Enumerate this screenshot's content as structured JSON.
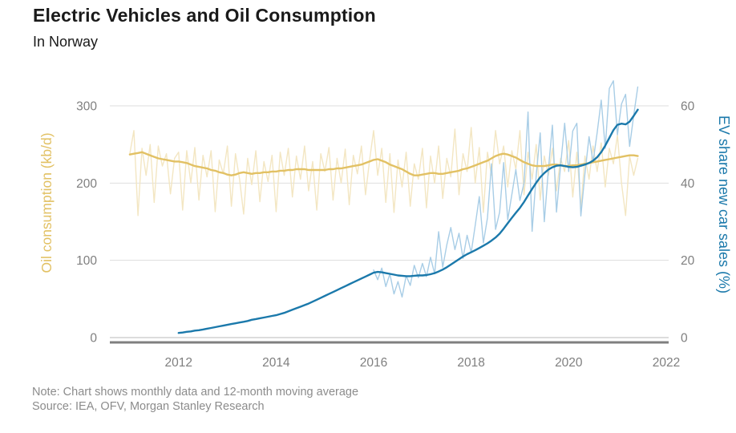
{
  "header": {
    "title": "Electric Vehicles and Oil Consumption",
    "subtitle": "In Norway"
  },
  "footer": {
    "note": "Note: Chart shows monthly data and 12-month moving average",
    "source": "Source: IEA, OFV, Morgan Stanley Research"
  },
  "chart_data": {
    "type": "line",
    "title": "Electric Vehicles and Oil Consumption",
    "subtitle": "In Norway",
    "grid": "horizontal-only",
    "colors": {
      "gridline": "#dedede",
      "zero_line": "#c8c8c8",
      "axis_base_line": "#7f7f7f",
      "tick_label": "#7f7f7f",
      "oil_monthly": "#f3e6c2",
      "oil_avg": "#e2c164",
      "ev_monthly": "#a8cde6",
      "ev_avg": "#1b79ab"
    },
    "x_axis": {
      "ticks": [
        2012,
        2014,
        2016,
        2018,
        2020,
        2022
      ],
      "range": [
        2010.59,
        2022.05
      ]
    },
    "left_axis": {
      "label": "Oil consumption (kb/d)",
      "label_color": "#e2c164",
      "ticks": [
        0,
        100,
        200,
        300
      ],
      "range": [
        0,
        300
      ]
    },
    "right_axis": {
      "label": "EV share new car sales (%)",
      "label_color": "#1b79ab",
      "ticks": [
        0,
        20,
        40,
        60
      ],
      "range": [
        0,
        60
      ]
    },
    "series": [
      {
        "name": "Oil consumption (monthly)",
        "data_name": "oil-monthly-line",
        "axis": "left",
        "color_key": "oil_monthly",
        "width": 1.4,
        "start": 2011.0,
        "step_months": 1,
        "values": [
          238,
          268,
          158,
          245,
          210,
          250,
          175,
          248,
          222,
          238,
          186,
          232,
          240,
          165,
          242,
          200,
          246,
          178,
          236,
          208,
          242,
          163,
          230,
          212,
          248,
          170,
          238,
          205,
          160,
          232,
          198,
          242,
          176,
          228,
          202,
          236,
          163,
          240,
          210,
          245,
          182,
          235,
          205,
          248,
          190,
          228,
          165,
          238,
          215,
          246,
          178,
          232,
          200,
          244,
          172,
          236,
          212,
          248,
          185,
          230,
          268,
          210,
          245,
          175,
          238,
          162,
          230,
          195,
          240,
          170,
          225,
          205,
          245,
          168,
          235,
          200,
          248,
          180,
          232,
          208,
          270,
          185,
          238,
          215,
          272,
          200,
          246,
          162,
          240,
          210,
          268,
          225,
          248,
          195,
          242,
          218,
          268,
          185,
          240,
          205,
          250,
          178,
          235,
          210,
          245,
          190,
          232,
          215,
          255,
          182,
          240,
          168,
          235,
          205,
          248,
          215,
          252,
          195,
          245,
          225,
          262,
          200,
          158,
          235,
          210,
          232
        ]
      },
      {
        "name": "EV share new car sales (monthly)",
        "data_name": "ev-monthly-line",
        "axis": "right",
        "color_key": "ev_monthly",
        "width": 1.4,
        "start": 2016.0,
        "step_months": 1,
        "values": [
          17.5,
          15.0,
          18.0,
          13.2,
          16.5,
          11.3,
          14.5,
          10.5,
          16.0,
          13.5,
          18.7,
          15.5,
          19.2,
          15.8,
          20.8,
          16.5,
          27.4,
          18.2,
          24.0,
          28.5,
          22.8,
          27.0,
          20.5,
          26.5,
          22.0,
          29.0,
          36.5,
          24.5,
          31.0,
          45.0,
          28.0,
          32.5,
          45.3,
          30.5,
          37.0,
          43.5,
          35.5,
          40.0,
          58.4,
          27.5,
          42.0,
          53.0,
          30.0,
          43.5,
          55.0,
          32.5,
          44.5,
          55.5,
          43.0,
          53.5,
          55.5,
          31.5,
          42.5,
          52.0,
          45.5,
          53.0,
          61.5,
          49.0,
          64.5,
          66.5,
          52.5,
          60.5,
          63.0,
          49.5,
          57.5,
          64.9
        ]
      },
      {
        "name": "Oil consumption (12-month moving average)",
        "data_name": "oil-average-line",
        "axis": "left",
        "color_key": "oil_avg",
        "width": 2.4,
        "start": 2011.0,
        "step_months": 1,
        "values": [
          237,
          238,
          239,
          240,
          238,
          236,
          234,
          232,
          231,
          230,
          229,
          228,
          228,
          227,
          226,
          224,
          222,
          221,
          220,
          219,
          217,
          216,
          214,
          213,
          211,
          210,
          211,
          213,
          214,
          213,
          212,
          213,
          213,
          214,
          214,
          215,
          215,
          216,
          216,
          217,
          217,
          218,
          218,
          218,
          217,
          217,
          217,
          217,
          217,
          218,
          218,
          219,
          219,
          220,
          221,
          222,
          223,
          224,
          226,
          228,
          230,
          231,
          229,
          227,
          224,
          222,
          220,
          218,
          215,
          212,
          210,
          210,
          211,
          212,
          213,
          213,
          212,
          212,
          213,
          214,
          215,
          216,
          218,
          219,
          221,
          223,
          225,
          227,
          229,
          232,
          235,
          237,
          238,
          237,
          235,
          233,
          230,
          227,
          225,
          223,
          222,
          222,
          222,
          223,
          224,
          224,
          223,
          222,
          222,
          223,
          223,
          224,
          225,
          226,
          227,
          228,
          229,
          230,
          231,
          232,
          233,
          234,
          235,
          236,
          236,
          235
        ]
      },
      {
        "name": "EV share new car sales (12-month moving average)",
        "data_name": "ev-average-line",
        "axis": "right",
        "color_key": "ev_avg",
        "width": 2.4,
        "start": 2012.0,
        "step_months": 1,
        "values": [
          1.2,
          1.3,
          1.5,
          1.6,
          1.8,
          1.9,
          2.1,
          2.3,
          2.5,
          2.7,
          2.9,
          3.1,
          3.3,
          3.5,
          3.7,
          3.9,
          4.1,
          4.3,
          4.6,
          4.8,
          5.0,
          5.2,
          5.4,
          5.6,
          5.8,
          6.1,
          6.4,
          6.8,
          7.2,
          7.6,
          8.0,
          8.4,
          8.8,
          9.3,
          9.8,
          10.3,
          10.8,
          11.3,
          11.8,
          12.3,
          12.8,
          13.3,
          13.8,
          14.3,
          14.8,
          15.3,
          15.8,
          16.3,
          16.8,
          17.0,
          16.9,
          16.7,
          16.5,
          16.3,
          16.1,
          16.0,
          15.9,
          15.9,
          16.0,
          16.1,
          16.1,
          16.2,
          16.4,
          16.7,
          17.1,
          17.6,
          18.2,
          18.9,
          19.6,
          20.3,
          21.0,
          21.6,
          22.1,
          22.6,
          23.2,
          23.8,
          24.4,
          25.1,
          25.9,
          26.9,
          28.2,
          29.6,
          31.0,
          32.3,
          33.6,
          35.1,
          36.8,
          38.5,
          40.1,
          41.5,
          42.6,
          43.5,
          44.1,
          44.5,
          44.6,
          44.4,
          44.2,
          44.1,
          44.2,
          44.5,
          44.8,
          45.2,
          45.8,
          46.7,
          48.0,
          49.7,
          51.7,
          53.7,
          55.1,
          55.4,
          55.2,
          55.9,
          57.4,
          59.0
        ]
      }
    ]
  }
}
